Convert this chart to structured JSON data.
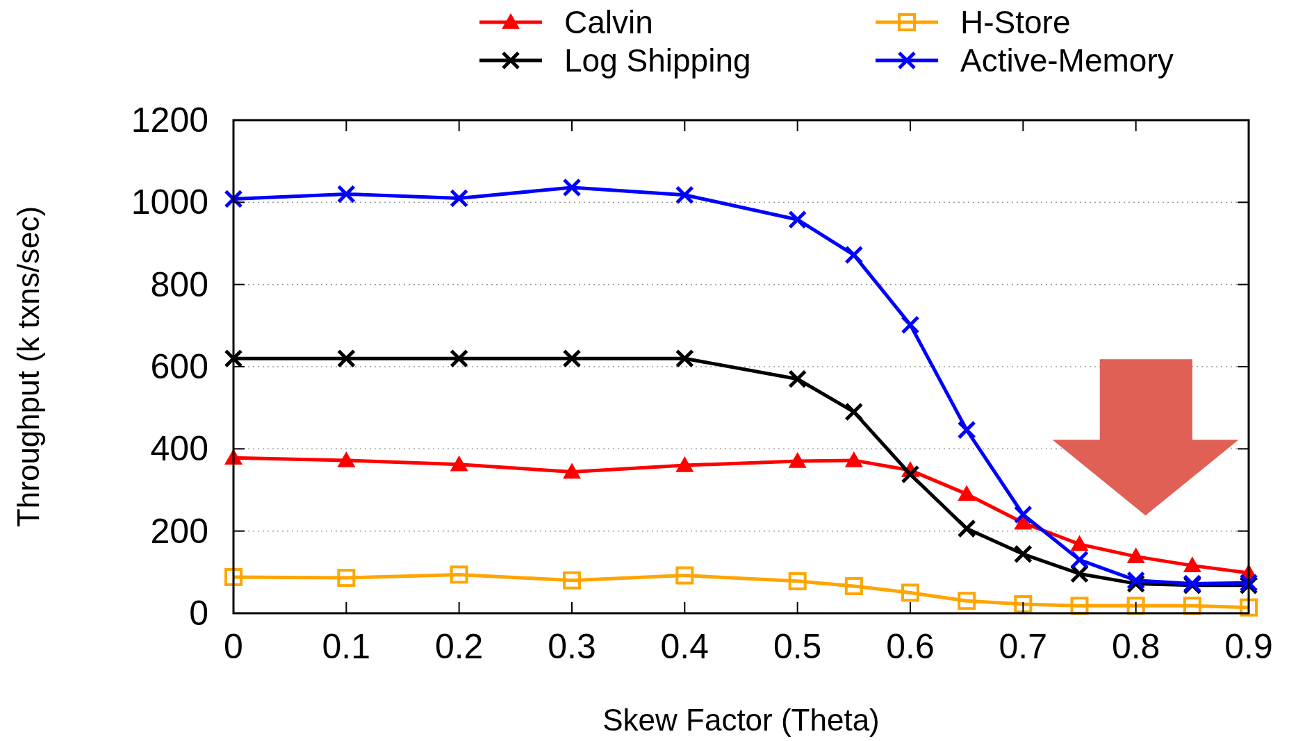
{
  "chart_data": {
    "type": "line",
    "xlabel": "Skew Factor (Theta)",
    "ylabel": "Throughput (k txns/sec)",
    "x": [
      0,
      0.1,
      0.2,
      0.3,
      0.4,
      0.5,
      0.55,
      0.6,
      0.65,
      0.7,
      0.75,
      0.8,
      0.85,
      0.9
    ],
    "series": [
      {
        "name": "Calvin",
        "color": "#ff0000",
        "marker": "triangle",
        "values": [
          378,
          372,
          362,
          344,
          360,
          370,
          372,
          348,
          290,
          220,
          168,
          138,
          116,
          98
        ]
      },
      {
        "name": "Log Shipping",
        "color": "#000000",
        "marker": "cross",
        "values": [
          620,
          620,
          620,
          620,
          620,
          570,
          490,
          338,
          206,
          144,
          96,
          72,
          68,
          68
        ]
      },
      {
        "name": "H-Store",
        "color": "#ffa500",
        "marker": "square",
        "values": [
          88,
          86,
          94,
          80,
          92,
          78,
          66,
          50,
          30,
          22,
          18,
          18,
          18,
          14
        ]
      },
      {
        "name": "Active-Memory",
        "color": "#0000ff",
        "marker": "cross",
        "values": [
          1008,
          1020,
          1010,
          1036,
          1018,
          958,
          872,
          702,
          446,
          240,
          130,
          80,
          72,
          74
        ]
      }
    ],
    "xlim": [
      0,
      0.9
    ],
    "xticks": [
      0,
      0.1,
      0.2,
      0.3,
      0.4,
      0.5,
      0.6,
      0.7,
      0.8,
      0.9
    ],
    "ylim": [
      0,
      1200
    ],
    "yticks": [
      0,
      200,
      400,
      600,
      800,
      1000,
      1200
    ],
    "grid": "y",
    "legend": "top",
    "line_style": "solid"
  }
}
